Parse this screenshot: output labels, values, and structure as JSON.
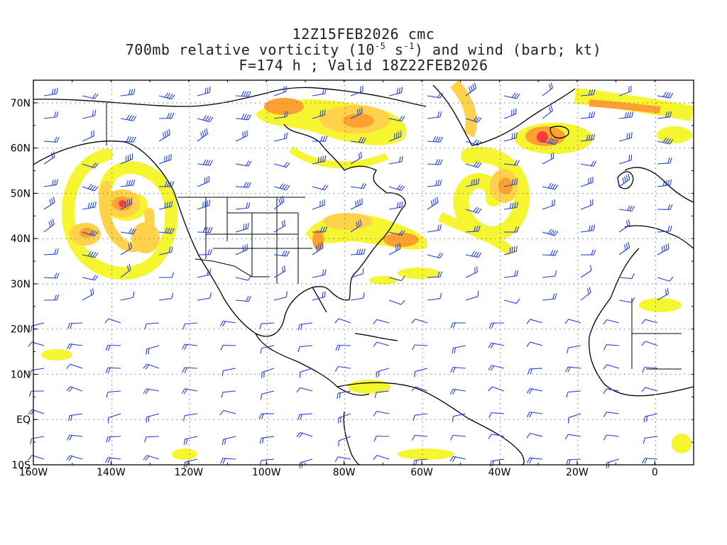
{
  "title": {
    "line1": "12Z15FEB2026 cmc",
    "line2_part1": "700mb relative vorticity (10",
    "line2_exp1": "-5",
    "line2_part2": " s",
    "line2_exp2": "-1",
    "line2_part3": ") and wind (barb; kt)",
    "line3": "F=174 h ; Valid 18Z22FEB2026"
  },
  "axes": {
    "lon_labels": [
      "160W",
      "140W",
      "120W",
      "100W",
      "80W",
      "60W",
      "40W",
      "20W",
      "0"
    ],
    "lat_labels": [
      "70N",
      "60N",
      "50N",
      "40N",
      "30N",
      "20N",
      "10N",
      "EQ",
      "10S"
    ],
    "lon_range": [
      -160,
      10
    ],
    "lat_range": [
      -10,
      75
    ],
    "grid": "dotted"
  },
  "colors": {
    "shade_light": "#f5f530",
    "shade_mid": "#ffd24a",
    "shade_orange": "#ffa030",
    "shade_high": "#ff7a30",
    "shade_max": "#ff3a3a",
    "barb": "#1f3fdf",
    "coast": "#000000",
    "grid": "#888888"
  }
}
